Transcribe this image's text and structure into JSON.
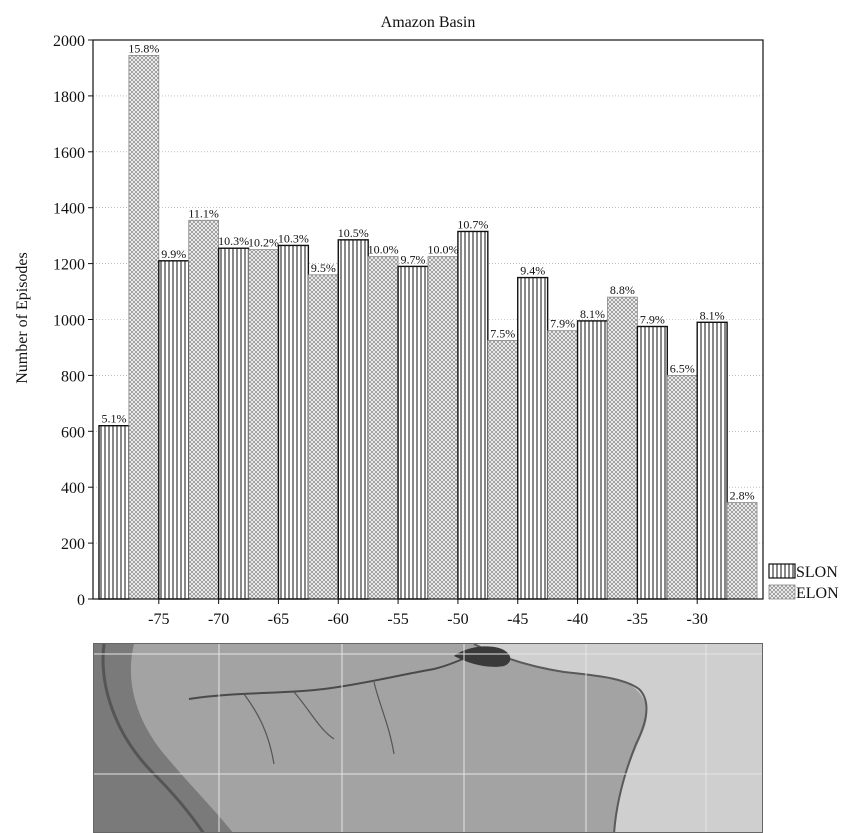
{
  "chart_data": {
    "type": "bar",
    "title": "Amazon Basin",
    "ylabel": "Number of Episodes",
    "xlabel": "",
    "ylim": [
      0,
      2000
    ],
    "yticks": [
      0,
      200,
      400,
      600,
      800,
      1000,
      1200,
      1400,
      1600,
      1800,
      2000
    ],
    "xlim": [
      -80.5,
      -24.5
    ],
    "xticks": [
      -75,
      -70,
      -65,
      -60,
      -55,
      -50,
      -45,
      -40,
      -35,
      -30
    ],
    "bin_width": 5,
    "grid": true,
    "legend_position": "bottom-right",
    "series": [
      {
        "name": "SLON",
        "pattern": "vertical-lines",
        "bins": [
          -80,
          -75,
          -70,
          -65,
          -60,
          -55,
          -50,
          -45,
          -40,
          -35,
          -30
        ],
        "values": [
          620,
          1210,
          1255,
          1265,
          1285,
          1190,
          1315,
          1150,
          995,
          975,
          990
        ],
        "labels": [
          "5.1%",
          "9.9%",
          "10.3%",
          "10.3%",
          "10.5%",
          "9.7%",
          "10.7%",
          "9.4%",
          "8.1%",
          "7.9%",
          "8.1%"
        ]
      },
      {
        "name": "ELON",
        "pattern": "crosshatch",
        "bins": [
          -80,
          -75,
          -70,
          -65,
          -60,
          -55,
          -50,
          -45,
          -40,
          -35,
          -30
        ],
        "values": [
          1945,
          1355,
          1250,
          1160,
          1225,
          1225,
          925,
          960,
          1080,
          800,
          345
        ],
        "labels": [
          "15.8%",
          "11.1%",
          "10.2%",
          "9.5%",
          "10.0%",
          "10.0%",
          "7.5%",
          "7.9%",
          "8.8%",
          "6.5%",
          "2.8%"
        ]
      }
    ]
  },
  "map": {
    "description_icon": "relief-map-image"
  }
}
